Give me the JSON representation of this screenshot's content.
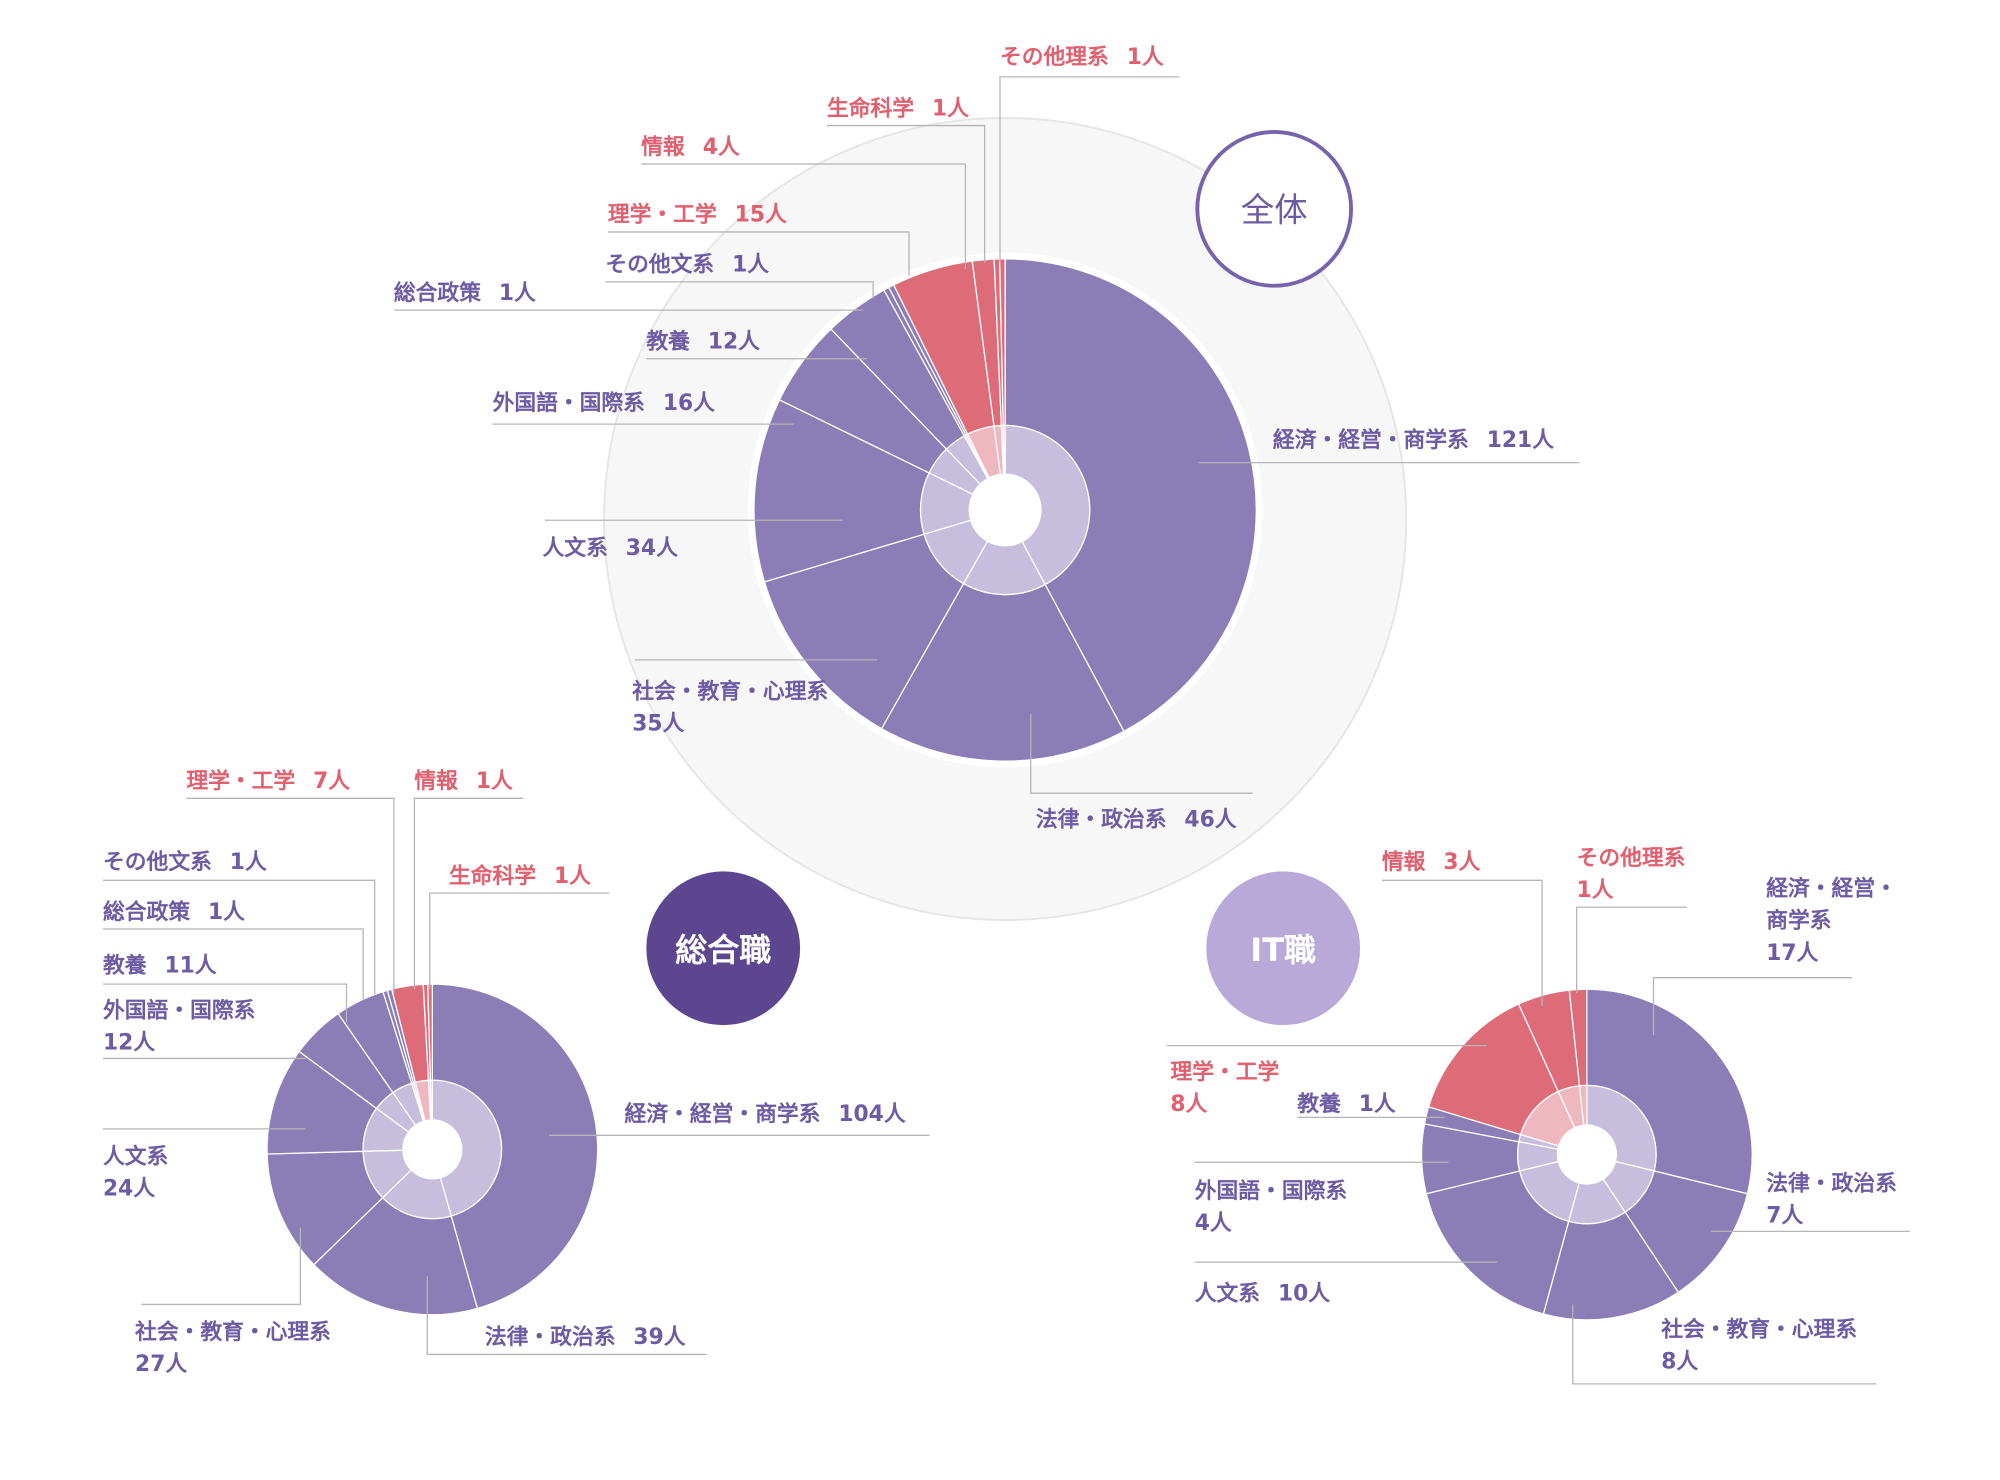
{
  "colors": {
    "bunkei": "#8b7db5",
    "bunkei_inner": "#c6bedc",
    "rikei": "#de6b78",
    "rikei_inner": "#efb7bf",
    "label_purple": "#6d5ca3",
    "label_red": "#e0606f"
  },
  "chart_data": {
    "type": "pie",
    "unit": "人",
    "charts": [
      {
        "title": "全体",
        "segments": [
          {
            "name": "経済・経営・商学系",
            "value": 121,
            "display": "121人",
            "group": "bunkei"
          },
          {
            "name": "法律・政治系",
            "value": 46,
            "display": "46人",
            "group": "bunkei"
          },
          {
            "name": "社会・教育・心理系",
            "value": 35,
            "display": "35人",
            "group": "bunkei"
          },
          {
            "name": "人文系",
            "value": 34,
            "display": "34人",
            "group": "bunkei"
          },
          {
            "name": "外国語・国際系",
            "value": 16,
            "display": "16人",
            "group": "bunkei"
          },
          {
            "name": "教養",
            "value": 12,
            "display": "12人",
            "group": "bunkei"
          },
          {
            "name": "総合政策",
            "value": 1,
            "display": "1人",
            "group": "bunkei"
          },
          {
            "name": "その他文系",
            "value": 1,
            "display": "1人",
            "group": "bunkei"
          },
          {
            "name": "理学・工学",
            "value": 15,
            "display": "15人",
            "group": "rikei"
          },
          {
            "name": "情報",
            "value": 4,
            "display": "4人",
            "group": "rikei"
          },
          {
            "name": "生命科学",
            "value": 1,
            "display": "1人",
            "group": "rikei"
          },
          {
            "name": "その他理系",
            "value": 1,
            "display": "1人",
            "group": "rikei"
          }
        ]
      },
      {
        "title": "総合職",
        "segments": [
          {
            "name": "経済・経営・商学系",
            "value": 104,
            "display": "104人",
            "group": "bunkei"
          },
          {
            "name": "法律・政治系",
            "value": 39,
            "display": "39人",
            "group": "bunkei"
          },
          {
            "name": "社会・教育・心理系",
            "value": 27,
            "display": "27人",
            "group": "bunkei"
          },
          {
            "name": "人文系",
            "value": 24,
            "display": "24人",
            "group": "bunkei"
          },
          {
            "name": "外国語・国際系",
            "value": 12,
            "display": "12人",
            "group": "bunkei"
          },
          {
            "name": "教養",
            "value": 11,
            "display": "11人",
            "group": "bunkei"
          },
          {
            "name": "総合政策",
            "value": 1,
            "display": "1人",
            "group": "bunkei"
          },
          {
            "name": "その他文系",
            "value": 1,
            "display": "1人",
            "group": "bunkei"
          },
          {
            "name": "理学・工学",
            "value": 7,
            "display": "7人",
            "group": "rikei"
          },
          {
            "name": "情報",
            "value": 1,
            "display": "1人",
            "group": "rikei"
          },
          {
            "name": "生命科学",
            "value": 1,
            "display": "1人",
            "group": "rikei"
          }
        ]
      },
      {
        "title": "IT職",
        "segments": [
          {
            "name": "経済・経営・商学系",
            "value": 17,
            "display": "17人",
            "group": "bunkei"
          },
          {
            "name": "法律・政治系",
            "value": 7,
            "display": "7人",
            "group": "bunkei"
          },
          {
            "name": "社会・教育・心理系",
            "value": 8,
            "display": "8人",
            "group": "bunkei"
          },
          {
            "name": "人文系",
            "value": 10,
            "display": "10人",
            "group": "bunkei"
          },
          {
            "name": "外国語・国際系",
            "value": 4,
            "display": "4人",
            "group": "bunkei"
          },
          {
            "name": "教養",
            "value": 1,
            "display": "1人",
            "group": "bunkei"
          },
          {
            "name": "理学・工学",
            "value": 8,
            "display": "8人",
            "group": "rikei"
          },
          {
            "name": "情報",
            "value": 3,
            "display": "3人",
            "group": "rikei"
          },
          {
            "name": "その他理系",
            "value": 1,
            "display": "1人",
            "group": "rikei"
          }
        ]
      }
    ]
  }
}
